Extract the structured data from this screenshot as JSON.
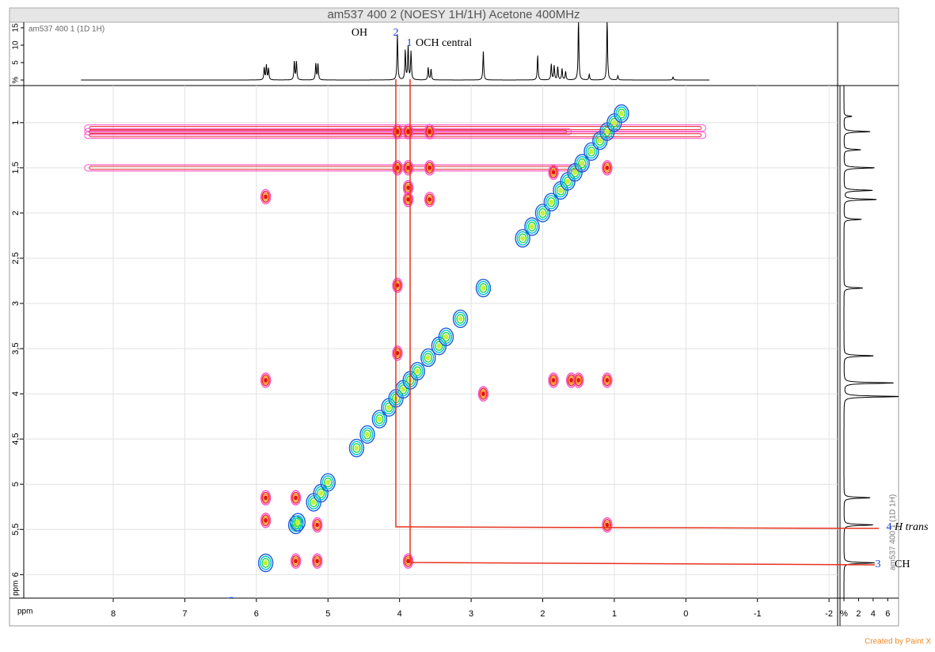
{
  "chart_data": {
    "type": "contour",
    "title": "am537 400 2 (NOESY 1H/1H) Acetone 400MHz",
    "top_label": "am537 400 1 (1D 1H)",
    "right_label": "am537 400 1 (1D 1H)",
    "x_label": "ppm",
    "y_label": "ppm",
    "xlim": [
      9.25,
      -2.12
    ],
    "ylim": [
      0.59,
      6.26
    ],
    "xticks": [
      8,
      7,
      6,
      5,
      4,
      3,
      2,
      1,
      0,
      -1,
      -2
    ],
    "yticks": [
      1,
      {
        "value": 1.5,
        "label": "1,5"
      },
      2,
      {
        "value": 2.5,
        "label": "2,5"
      },
      3,
      {
        "value": 3.5,
        "label": "3,5"
      },
      4,
      {
        "value": 4.5,
        "label": "4,5"
      },
      5,
      {
        "value": 5.5,
        "label": "5,5"
      },
      6
    ],
    "grid": true,
    "top_ylim": [
      0,
      16.6
    ],
    "top_yticks": [
      {
        "value": 0,
        "label": "%"
      },
      5,
      10,
      15
    ],
    "right_xlim": [
      0,
      7.6
    ],
    "right_xticks": [
      {
        "value": 0,
        "label": "%"
      },
      2,
      4,
      6
    ],
    "spectrum_range": [
      8.45,
      -0.33
    ],
    "top_spectrum": {
      "ppm": [
        5.89,
        5.86,
        5.83,
        5.47,
        5.44,
        5.17,
        5.14,
        4.03,
        3.92,
        3.88,
        3.84,
        3.6,
        3.56,
        2.83,
        2.07,
        1.88,
        1.84,
        1.79,
        1.73,
        1.68,
        1.5,
        1.35,
        1.1,
        0.95,
        0.18
      ],
      "values": [
        3.5,
        4.2,
        3.3,
        5.4,
        5.2,
        4.8,
        4.6,
        13.2,
        8.5,
        9.6,
        8.1,
        3.6,
        3.1,
        8.3,
        7.0,
        4.5,
        4.1,
        3.8,
        3.2,
        2.4,
        17,
        1.6,
        17,
        1.2,
        0.9
      ]
    },
    "right_spectrum": {
      "ppm": [
        5.87,
        5.45,
        5.15,
        4.03,
        3.88,
        3.58,
        2.83,
        2.07,
        1.85,
        1.75,
        1.5,
        1.3,
        1.1,
        0.93
      ],
      "values": [
        4.2,
        4.0,
        3.6,
        7.8,
        6.9,
        4.1,
        2.6,
        2.4,
        4.5,
        3.9,
        4.2,
        2.3,
        3.6,
        1.1
      ]
    },
    "diagonal_peaks": {
      "x": [
        6.35,
        5.87,
        5.45,
        5.42,
        5.2,
        5.1,
        5.0,
        4.6,
        4.45,
        4.28,
        4.15,
        4.05,
        3.95,
        3.85,
        3.75,
        3.6,
        3.45,
        3.35,
        3.15,
        2.83,
        2.28,
        2.15,
        2.0,
        1.88,
        1.75,
        1.65,
        1.55,
        1.45,
        1.32,
        1.2,
        1.1,
        1.0,
        0.9
      ],
      "y": [
        6.35,
        5.87,
        5.45,
        5.42,
        5.2,
        5.1,
        4.98,
        4.6,
        4.45,
        4.28,
        4.15,
        4.05,
        3.95,
        3.85,
        3.75,
        3.6,
        3.47,
        3.37,
        3.17,
        2.83,
        2.28,
        2.15,
        2.0,
        1.88,
        1.75,
        1.65,
        1.55,
        1.45,
        1.32,
        1.2,
        1.1,
        1.0,
        0.9
      ]
    },
    "cross_peaks": {
      "x": [
        5.87,
        5.87,
        5.87,
        5.87,
        5.45,
        5.45,
        5.15,
        5.15,
        4.03,
        4.03,
        4.03,
        4.03,
        3.88,
        3.88,
        3.88,
        3.88,
        3.88,
        3.58,
        3.58,
        3.58,
        2.83,
        1.85,
        1.85,
        1.6,
        1.5,
        1.1,
        1.1,
        1.1
      ],
      "y": [
        1.82,
        3.85,
        5.15,
        5.4,
        5.15,
        5.85,
        5.45,
        5.85,
        1.1,
        1.5,
        2.8,
        3.55,
        1.1,
        1.5,
        1.72,
        1.85,
        5.85,
        1.1,
        1.5,
        1.85,
        4.0,
        3.85,
        1.55,
        3.85,
        3.85,
        3.85,
        1.5,
        5.45
      ]
    },
    "ridges": {
      "y": [
        1.06,
        1.1,
        1.14,
        1.5
      ],
      "from": [
        8.4,
        8.4,
        8.4,
        8.4
      ],
      "to": [
        -0.28,
        1.6,
        -0.28,
        1.4
      ]
    },
    "annotations": [
      {
        "number": "2",
        "label": "OH"
      },
      {
        "number": "1",
        "label": "OCH central"
      },
      {
        "number": "4",
        "label": "H trans"
      },
      {
        "number": "3",
        "label": "CH"
      }
    ],
    "footer": "Created by Paint X"
  }
}
